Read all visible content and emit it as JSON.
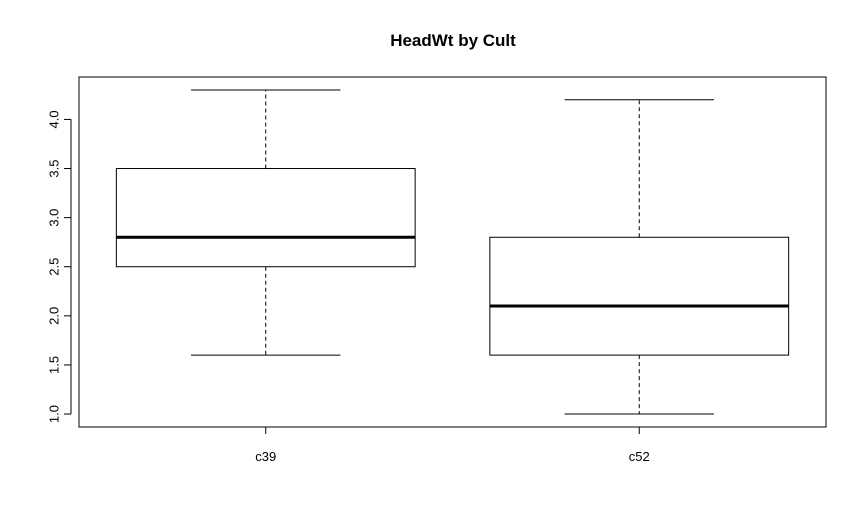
{
  "chart_data": {
    "type": "boxplot",
    "title": "HeadWt by Cult",
    "xlabel": "",
    "ylabel": "",
    "categories": [
      "c39",
      "c52"
    ],
    "boxes": [
      {
        "category": "c39",
        "whisker_low": 1.6,
        "q1": 2.5,
        "median": 2.8,
        "q3": 3.5,
        "whisker_high": 4.3
      },
      {
        "category": "c52",
        "whisker_low": 1.0,
        "q1": 1.6,
        "median": 2.1,
        "q3": 2.8,
        "whisker_high": 4.2
      }
    ],
    "ylim": [
      0.868,
      4.432
    ],
    "yticks": [
      1.0,
      1.5,
      2.0,
      2.5,
      3.0,
      3.5,
      4.0
    ],
    "ytick_labels": [
      "1.0",
      "1.5",
      "2.0",
      "2.5",
      "3.0",
      "3.5",
      "4.0"
    ],
    "grid": false,
    "colors": {
      "box_fill": "#ffffff",
      "stroke": "#000000"
    }
  }
}
